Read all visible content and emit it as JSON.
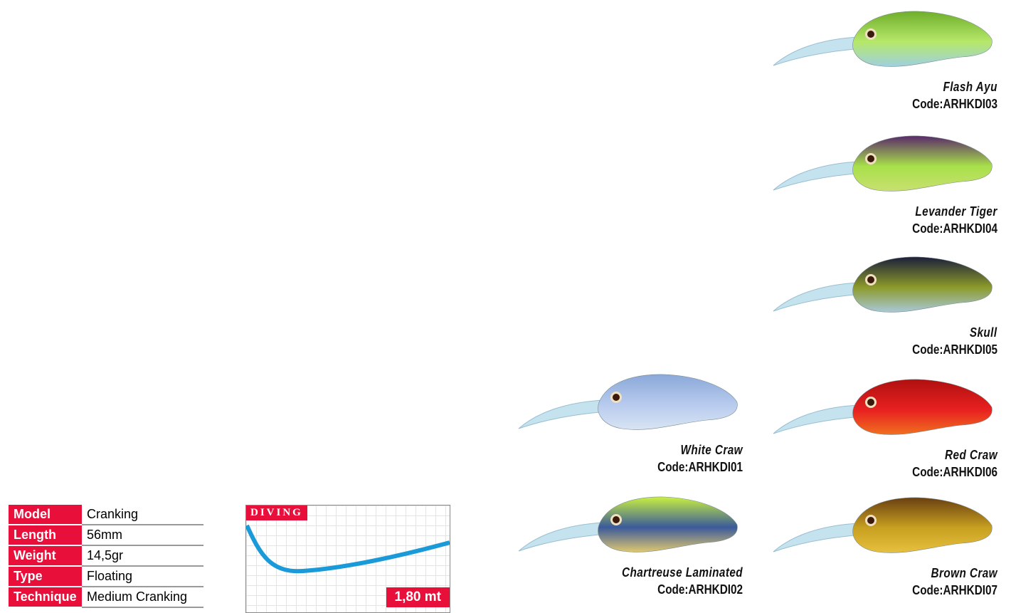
{
  "lures": [
    {
      "name": "Flash Ayu",
      "code": "Code:ARHKDI03",
      "colors": {
        "top": "#6fae2a",
        "body": "#b6e86a",
        "belly": "#9fd0e0"
      }
    },
    {
      "name": "Levander Tiger",
      "code": "Code:ARHKDI04",
      "colors": {
        "top": "#5a2a6a",
        "body": "#a8e04a",
        "belly": "#c8e070"
      }
    },
    {
      "name": "Skull",
      "code": "Code:ARHKDI05",
      "colors": {
        "top": "#1c1f3a",
        "body": "#8c9a2a",
        "belly": "#a8c8d8"
      }
    },
    {
      "name": "White Craw",
      "code": "Code:ARHKDI01",
      "colors": {
        "top": "#8aa8d8",
        "body": "#b8cbee",
        "belly": "#d8e4f4"
      }
    },
    {
      "name": "Red Craw",
      "code": "Code:ARHKDI06",
      "colors": {
        "top": "#b01010",
        "body": "#e82020",
        "belly": "#f07020"
      }
    },
    {
      "name": "Chartreuse Laminated",
      "code": "Code:ARHKDI02",
      "colors": {
        "top": "#c8f040",
        "body": "#3a5a9a",
        "belly": "#e0c870"
      }
    },
    {
      "name": "Brown Craw",
      "code": "Code:ARHKDI07",
      "colors": {
        "top": "#6a4010",
        "body": "#c8a020",
        "belly": "#e8c040"
      }
    }
  ],
  "specs": [
    {
      "label": "Model",
      "value": "Cranking"
    },
    {
      "label": "Length",
      "value": "56mm"
    },
    {
      "label": "Weight",
      "value": "14,5gr"
    },
    {
      "label": "Type",
      "value": "Floating"
    },
    {
      "label": "Technique",
      "value": "Medium Cranking"
    }
  ],
  "diving": {
    "title": "DIVING",
    "depth": "1,80 mt",
    "curve_color": "#1a9ad8"
  },
  "accent": "#e8103a"
}
